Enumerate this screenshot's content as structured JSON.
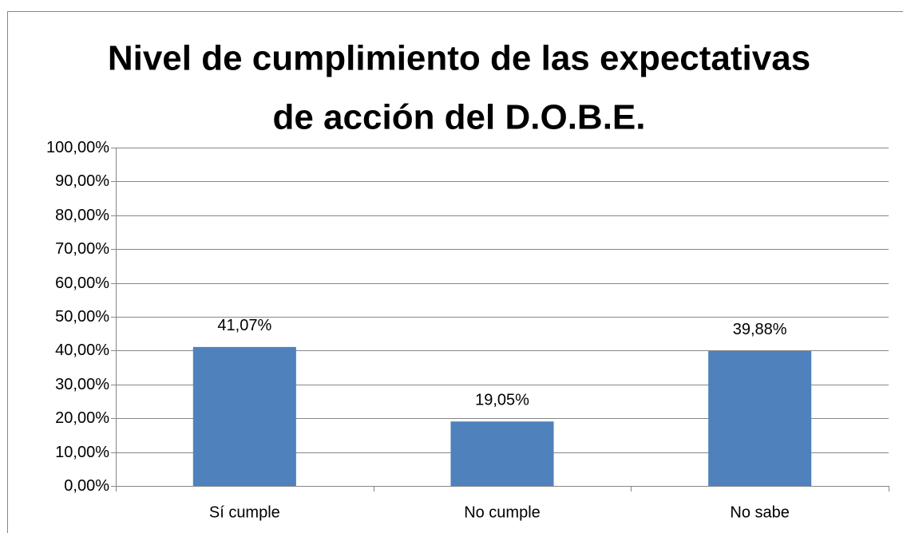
{
  "chart_data": {
    "type": "bar",
    "title": [
      "Nivel de cumplimiento de las expectativas",
      "de acción del D.O.B.E."
    ],
    "categories": [
      "Sí cumple",
      "No cumple",
      "No sabe"
    ],
    "values": [
      41.07,
      19.05,
      39.88
    ],
    "value_labels": [
      "41,07%",
      "19,05%",
      "39,88%"
    ],
    "color": "#4f81bd",
    "ylim": [
      0,
      100
    ],
    "yticks": [
      {
        "value": 0,
        "label": "0,00%"
      },
      {
        "value": 10,
        "label": "10,00%"
      },
      {
        "value": 20,
        "label": "20,00%"
      },
      {
        "value": 30,
        "label": "30,00%"
      },
      {
        "value": 40,
        "label": "40,00%"
      },
      {
        "value": 50,
        "label": "50,00%"
      },
      {
        "value": 60,
        "label": "60,00%"
      },
      {
        "value": 70,
        "label": "70,00%"
      },
      {
        "value": 80,
        "label": "80,00%"
      },
      {
        "value": 90,
        "label": "90,00%"
      },
      {
        "value": 100,
        "label": "100,00%"
      }
    ],
    "grid": true
  }
}
